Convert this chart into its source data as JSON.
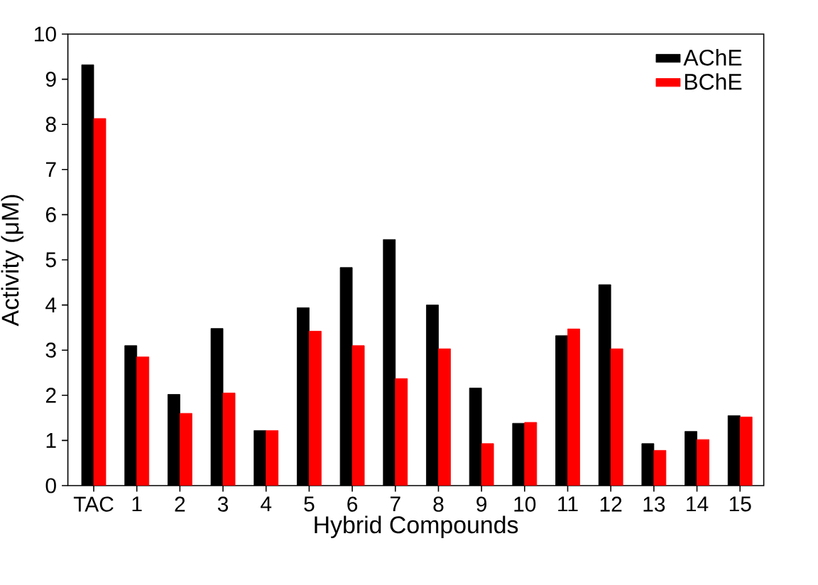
{
  "chart_data": {
    "type": "bar",
    "xlabel": "Hybrid Compounds",
    "ylabel": "Activity (μM)",
    "categories": [
      "TAC",
      "1",
      "2",
      "3",
      "4",
      "5",
      "6",
      "7",
      "8",
      "9",
      "10",
      "11",
      "12",
      "13",
      "14",
      "15"
    ],
    "series": [
      {
        "name": "AChE",
        "color": "#000000",
        "values": [
          9.32,
          3.1,
          2.02,
          3.48,
          1.22,
          3.94,
          4.83,
          5.45,
          4.0,
          2.16,
          1.38,
          3.32,
          4.45,
          0.93,
          1.2,
          1.55
        ]
      },
      {
        "name": "BChE",
        "color": "#ff0000",
        "values": [
          8.13,
          2.85,
          1.6,
          2.05,
          1.22,
          3.42,
          3.1,
          2.37,
          3.03,
          0.93,
          1.4,
          3.47,
          3.03,
          0.78,
          1.02,
          1.52
        ]
      }
    ],
    "ylim": [
      0,
      10
    ],
    "yticks": [
      0,
      1,
      2,
      3,
      4,
      5,
      6,
      7,
      8,
      9,
      10
    ],
    "grid": false,
    "legend": "top right"
  }
}
